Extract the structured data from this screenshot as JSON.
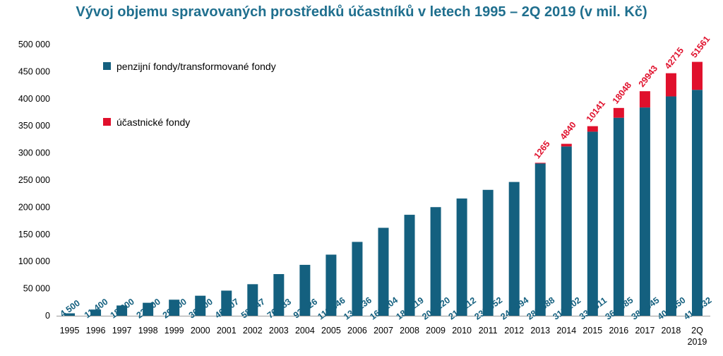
{
  "chart_data": {
    "type": "bar",
    "stacked": true,
    "title": "Vývoj objemu spravovaných prostředků účastníků v letech 1995 – 2Q 2019 (v mil. Kč)",
    "categories": [
      "1995",
      "1996",
      "1997",
      "1998",
      "1999",
      "2000",
      "2001",
      "2002",
      "2003",
      "2004",
      "2005",
      "2006",
      "2007",
      "2008",
      "2009",
      "2010",
      "2011",
      "2012",
      "2013",
      "2014",
      "2015",
      "2016",
      "2017",
      "2018",
      "2Q 2019"
    ],
    "series": [
      {
        "name": "penzijní fondy/transformované fondy",
        "color": "#14607f",
        "values": [
          4500,
          11400,
          18900,
          23900,
          29600,
          36900,
          46307,
          58147,
          76783,
          93826,
          112646,
          136136,
          162104,
          186119,
          200220,
          216112,
          232052,
          246594,
          280688,
          312102,
          339311,
          364985,
          383945,
          404350,
          416432
        ],
        "labels": [
          "4 500",
          "11 400",
          "18 900",
          "23 900",
          "29 600",
          "36 900",
          "46 307",
          "58 147",
          "76 783",
          "93 826",
          "112 646",
          "136 136",
          "162 104",
          "186 119",
          "200 220",
          "216 112",
          "232 052",
          "246 594",
          "280 688",
          "312 102",
          "339 311",
          "364 985",
          "383 945",
          "404 350",
          "416 432"
        ]
      },
      {
        "name": "účastnické fondy",
        "color": "#e0102c",
        "values": [
          0,
          0,
          0,
          0,
          0,
          0,
          0,
          0,
          0,
          0,
          0,
          0,
          0,
          0,
          0,
          0,
          0,
          0,
          1265,
          4840,
          10141,
          18048,
          29943,
          42715,
          51561
        ],
        "labels": [
          "",
          "",
          "",
          "",
          "",
          "",
          "",
          "",
          "",
          "",
          "",
          "",
          "",
          "",
          "",
          "",
          "",
          "",
          "1265",
          "4840",
          "10141",
          "18048",
          "29943",
          "42715",
          "51561"
        ]
      }
    ],
    "ylim": [
      0,
      500000
    ],
    "yticks": [
      0,
      50000,
      100000,
      150000,
      200000,
      250000,
      300000,
      350000,
      400000,
      450000,
      500000
    ],
    "ytick_labels": [
      "0",
      "50 000",
      "100 000",
      "150 000",
      "200 000",
      "250 000",
      "300 000",
      "350 000",
      "400 000",
      "450 000",
      "500 000"
    ],
    "xlabel": "",
    "ylabel": "",
    "grid": false,
    "legend_position": "top-left"
  }
}
